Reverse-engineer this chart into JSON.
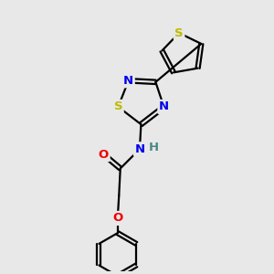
{
  "background_color": "#e8e8e8",
  "atom_colors": {
    "C": "#000000",
    "N": "#0000ee",
    "O": "#ee0000",
    "S": "#bbbb00",
    "H": "#4a8888"
  },
  "bond_color": "#000000",
  "bond_width": 1.6,
  "fig_size": [
    3.0,
    3.0
  ],
  "dpi": 100
}
